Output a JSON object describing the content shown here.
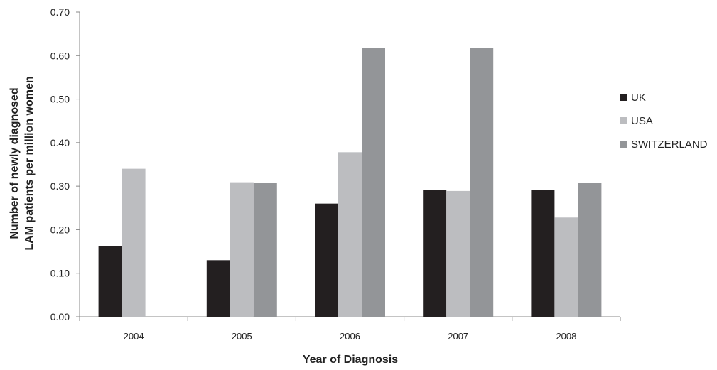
{
  "chart_data": {
    "type": "bar",
    "title": "",
    "xlabel": "Year of Diagnosis",
    "ylabel_lines": [
      "Number of newly diagnosed",
      "LAM patients per million women"
    ],
    "categories": [
      "2004",
      "2005",
      "2006",
      "2007",
      "2008"
    ],
    "series": [
      {
        "name": "UK",
        "values": [
          0.163,
          0.13,
          0.26,
          0.291,
          0.291
        ],
        "color": "#231f20"
      },
      {
        "name": "USA",
        "values": [
          0.34,
          0.309,
          0.378,
          0.289,
          0.228
        ],
        "color": "#bcbdc0"
      },
      {
        "name": "SWITZERLAND",
        "values": [
          0,
          0.308,
          0.617,
          0.617,
          0.308
        ],
        "color": "#939598"
      }
    ],
    "ylim": [
      0,
      0.7
    ],
    "yticks": [
      0.0,
      0.1,
      0.2,
      0.3,
      0.4,
      0.5,
      0.6,
      0.7
    ],
    "ytick_labels": [
      "0.00",
      "0.10",
      "0.20",
      "0.30",
      "0.40",
      "0.50",
      "0.60",
      "0.70"
    ],
    "grid": false,
    "legend_position": "right"
  }
}
